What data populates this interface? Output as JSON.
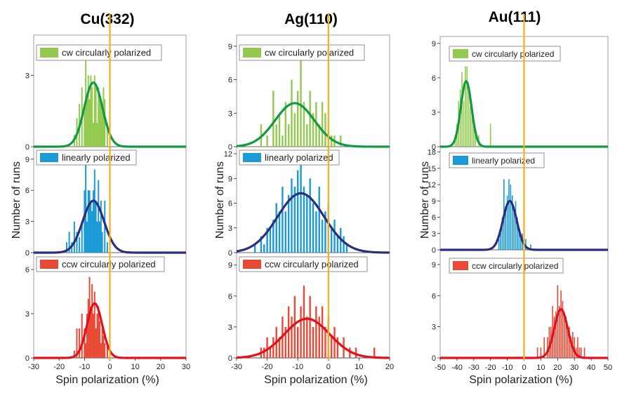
{
  "chart_data": [
    {
      "type": "bar",
      "title": "Cu(332)",
      "xlabel": "Spin polarization (%)",
      "ylabel": "Number of runs",
      "xlim": [
        -30,
        30
      ],
      "xticks": [
        "-30",
        "-20",
        "-10",
        "0",
        "10",
        "20",
        "30"
      ],
      "marker_x": 0,
      "panels": [
        {
          "name": "cw",
          "legend": "cw circularly polarized",
          "color": "#92c94e",
          "fit_color": "#119a3f",
          "ylim": [
            0,
            4.7
          ],
          "yticks": [
            "0",
            "3"
          ],
          "hist_x": [
            -14.0,
            -13.0,
            -12.0,
            -11.0,
            -10.0,
            -9.5,
            -9.0,
            -8.5,
            -8.0,
            -7.5,
            -7.0,
            -6.5,
            -6.0,
            -5.5,
            -5.0,
            -4.5,
            -4.0,
            -3.5,
            -3.0,
            -2.5,
            -2.0,
            -1.0
          ],
          "hist_y": [
            0.5,
            1.2,
            1.8,
            2.5,
            1.5,
            4.0,
            2.0,
            3.0,
            2.0,
            3.0,
            2.5,
            1.0,
            3.0,
            2.5,
            1.0,
            2.5,
            2.0,
            2.0,
            1.5,
            2.5,
            2.0,
            1.0
          ],
          "fit": {
            "amp": 2.7,
            "mu": -6.5,
            "sigma": 3.6
          }
        },
        {
          "name": "linear",
          "legend": "linearly polarized",
          "color": "#1a9ad6",
          "fit_color": "#2b2d7e",
          "ylim": [
            0,
            10
          ],
          "yticks": [
            "0",
            "3",
            "6",
            "9"
          ],
          "hist_x": [
            -17.0,
            -16.0,
            -15.0,
            -14.0,
            -13.0,
            -12.0,
            -11.0,
            -10.0,
            -9.5,
            -9.0,
            -8.5,
            -8.0,
            -7.5,
            -7.0,
            -6.5,
            -6.0,
            -5.5,
            -5.0,
            -4.5,
            -4.0,
            -3.5,
            -3.0,
            -2.0,
            -1.0
          ],
          "hist_y": [
            1.0,
            2.0,
            1.0,
            3.0,
            2.0,
            1.5,
            3.0,
            6.0,
            9.0,
            3.0,
            6.0,
            6.0,
            5.0,
            4.0,
            6.0,
            8.0,
            5.0,
            3.0,
            7.0,
            3.0,
            5.0,
            2.0,
            5.0,
            1.0
          ],
          "fit": {
            "amp": 5.0,
            "mu": -6.5,
            "sigma": 4.2
          }
        },
        {
          "name": "ccw",
          "legend": "ccw circularly polarized",
          "color": "#e84a35",
          "fit_color": "#e3101c",
          "ylim": [
            0,
            7
          ],
          "yticks": [
            "0",
            "3",
            "6"
          ],
          "hist_x": [
            -14.0,
            -13.0,
            -12.0,
            -11.0,
            -10.0,
            -9.5,
            -9.0,
            -8.5,
            -8.0,
            -7.5,
            -7.0,
            -6.5,
            -6.0,
            -5.5,
            -5.0,
            -4.5,
            -4.0,
            -3.5,
            -3.0,
            -2.5,
            -2.0,
            -1.0
          ],
          "hist_y": [
            0.5,
            2.0,
            2.0,
            3.0,
            2.0,
            1.0,
            3.0,
            4.0,
            5.5,
            3.5,
            5.0,
            3.0,
            4.5,
            2.0,
            3.0,
            3.5,
            2.5,
            1.0,
            2.0,
            1.5,
            1.0,
            1.0
          ],
          "fit": {
            "amp": 3.7,
            "mu": -6.0,
            "sigma": 3.0
          }
        }
      ]
    },
    {
      "type": "bar",
      "title": "Ag(110)",
      "xlabel": "Spin polarization (%)",
      "ylabel": "Number of runs",
      "xlim": [
        -30,
        20
      ],
      "xticks": [
        "-30",
        "-20",
        "-10",
        "0",
        "10",
        "20"
      ],
      "marker_x": 0,
      "panels": [
        {
          "name": "cw",
          "legend": "cw circularly polarized",
          "color": "#92c94e",
          "fit_color": "#119a3f",
          "ylim": [
            0,
            10
          ],
          "yticks": [
            "0",
            "3",
            "6",
            "9"
          ],
          "hist_x": [
            -22.0,
            -20.0,
            -18.0,
            -17.0,
            -16.0,
            -15.0,
            -14.0,
            -13.0,
            -12.0,
            -11.0,
            -10.0,
            -9.0,
            -8.0,
            -7.0,
            -6.0,
            -5.0,
            -4.0,
            -3.0,
            -2.0,
            -1.0,
            0.0,
            1.0,
            2.0,
            4.0
          ],
          "hist_y": [
            2.0,
            1.0,
            5.0,
            2.0,
            3.0,
            1.0,
            4.0,
            2.0,
            6.0,
            3.0,
            5.0,
            8.0,
            4.0,
            2.0,
            5.0,
            3.0,
            4.0,
            2.0,
            4.0,
            3.0,
            2.0,
            1.0,
            1.0,
            1.0
          ],
          "fit": {
            "amp": 3.9,
            "mu": -11.0,
            "sigma": 6.4
          }
        },
        {
          "name": "linear",
          "legend": "linearly polarized",
          "color": "#1a9ad6",
          "fit_color": "#2b2d7e",
          "ylim": [
            0,
            12.6
          ],
          "yticks": [
            "0",
            "3",
            "6",
            "9",
            "12"
          ],
          "hist_x": [
            -24.0,
            -22.0,
            -21.0,
            -20.0,
            -19.0,
            -18.0,
            -17.0,
            -16.0,
            -15.0,
            -14.0,
            -13.0,
            -12.0,
            -11.0,
            -10.0,
            -9.0,
            -8.0,
            -7.0,
            -6.0,
            -5.0,
            -4.0,
            -3.0,
            -2.0,
            -1.0,
            0.0,
            1.0,
            2.0,
            3.0,
            4.0,
            5.0,
            6.0
          ],
          "hist_y": [
            1.0,
            2.0,
            1.0,
            3.0,
            3.0,
            4.0,
            6.0,
            5.0,
            8.0,
            5.0,
            7.0,
            9.0,
            8.0,
            10.0,
            12.0,
            8.0,
            7.0,
            9.0,
            6.0,
            5.0,
            8.0,
            4.0,
            5.0,
            6.0,
            3.0,
            4.0,
            2.0,
            3.0,
            2.0,
            1.0
          ],
          "fit": {
            "amp": 7.2,
            "mu": -9.0,
            "sigma": 7.6
          }
        },
        {
          "name": "ccw",
          "legend": "ccw circularly polarized",
          "color": "#e84a35",
          "fit_color": "#e3101c",
          "ylim": [
            0,
            10
          ],
          "yticks": [
            "0",
            "3",
            "6",
            "9"
          ],
          "hist_x": [
            -22.0,
            -21.0,
            -20.0,
            -19.0,
            -18.0,
            -17.0,
            -16.0,
            -15.0,
            -14.0,
            -13.0,
            -12.0,
            -11.0,
            -10.0,
            -9.0,
            -8.0,
            -7.0,
            -6.0,
            -5.0,
            -4.0,
            -3.0,
            -2.0,
            -1.0,
            0.0,
            1.0,
            2.0,
            3.0,
            5.0,
            7.0,
            9.0,
            15.0
          ],
          "hist_y": [
            1.0,
            1.0,
            2.0,
            1.0,
            2.0,
            3.0,
            2.0,
            4.0,
            3.0,
            5.0,
            4.0,
            6.0,
            3.0,
            5.0,
            7.0,
            4.0,
            6.0,
            3.0,
            5.0,
            4.0,
            5.0,
            3.0,
            4.0,
            2.0,
            3.0,
            2.0,
            2.0,
            1.0,
            1.0,
            1.0
          ],
          "fit": {
            "amp": 3.8,
            "mu": -7.0,
            "sigma": 7.4
          }
        }
      ]
    },
    {
      "type": "bar",
      "title": "Au(111)",
      "xlabel": "Spin polarization (%)",
      "ylabel": "Number of runs",
      "xlim": [
        -50,
        50
      ],
      "xticks": [
        "-50",
        "-40",
        "-30",
        "-20",
        "-10",
        "0",
        "10",
        "20",
        "30",
        "40",
        "50"
      ],
      "marker_x": 0,
      "panels": [
        {
          "name": "cw",
          "legend": "cw circularly polarized",
          "color": "#92c94e",
          "fit_color": "#119a3f",
          "ylim": [
            0,
            9.6
          ],
          "yticks": [
            "0",
            "3",
            "6",
            "9"
          ],
          "hist_x": [
            -41.0,
            -40.0,
            -39.0,
            -38.0,
            -37.0,
            -36.0,
            -35.0,
            -34.0,
            -33.0,
            -32.0,
            -31.0,
            -30.0,
            -29.0,
            -27.0,
            -20.0
          ],
          "hist_y": [
            1.0,
            2.0,
            4.0,
            5.0,
            6.5,
            4.0,
            7.0,
            7.0,
            5.0,
            3.5,
            3.0,
            2.0,
            1.0,
            1.0,
            2.0
          ],
          "fit": {
            "amp": 5.7,
            "mu": -34.5,
            "sigma": 3.2
          }
        },
        {
          "name": "linear",
          "legend": "linearly polarized",
          "color": "#1a9ad6",
          "fit_color": "#2b2d7e",
          "ylim": [
            0,
            18.6
          ],
          "yticks": [
            "0",
            "3",
            "6",
            "9",
            "12",
            "15",
            "18"
          ],
          "hist_x": [
            -15.0,
            -14.0,
            -13.0,
            -12.0,
            -11.0,
            -10.0,
            -9.0,
            -8.0,
            -7.0,
            -6.0,
            -5.0,
            -4.0,
            -3.0,
            -2.0,
            -1.0,
            0.0,
            1.0,
            4.0
          ],
          "hist_y": [
            2.0,
            4.0,
            6.0,
            13.0,
            8.0,
            10.0,
            13.0,
            12.0,
            10.0,
            8.0,
            9.0,
            6.0,
            4.0,
            3.0,
            3.0,
            2.0,
            2.0,
            1.0
          ],
          "fit": {
            "amp": 9.0,
            "mu": -8.5,
            "sigma": 4.1
          }
        },
        {
          "name": "ccw",
          "legend": "ccw circularly polarized",
          "color": "#e84a35",
          "fit_color": "#e3101c",
          "ylim": [
            0,
            9.6
          ],
          "yticks": [
            "0",
            "3",
            "6",
            "9"
          ],
          "hist_x": [
            8.0,
            10.0,
            12.0,
            14.0,
            15.0,
            16.0,
            17.0,
            18.0,
            19.0,
            20.0,
            21.0,
            22.0,
            23.0,
            24.0,
            25.0,
            26.0,
            27.0,
            28.0,
            29.0,
            30.0,
            31.0,
            32.0,
            33.0,
            34.0,
            36.0
          ],
          "hist_y": [
            1.0,
            1.0,
            2.0,
            2.0,
            3.0,
            3.0,
            5.0,
            4.0,
            4.5,
            7.0,
            5.0,
            6.5,
            5.5,
            4.0,
            4.0,
            3.0,
            3.0,
            2.0,
            2.5,
            2.0,
            1.0,
            2.0,
            1.0,
            1.0,
            1.0
          ],
          "fit": {
            "amp": 4.7,
            "mu": 22.0,
            "sigma": 4.0
          }
        }
      ]
    }
  ],
  "colors": {
    "marker_line": "#f6ae1a",
    "frame": "#8a8a8a",
    "axis": "#222222"
  }
}
